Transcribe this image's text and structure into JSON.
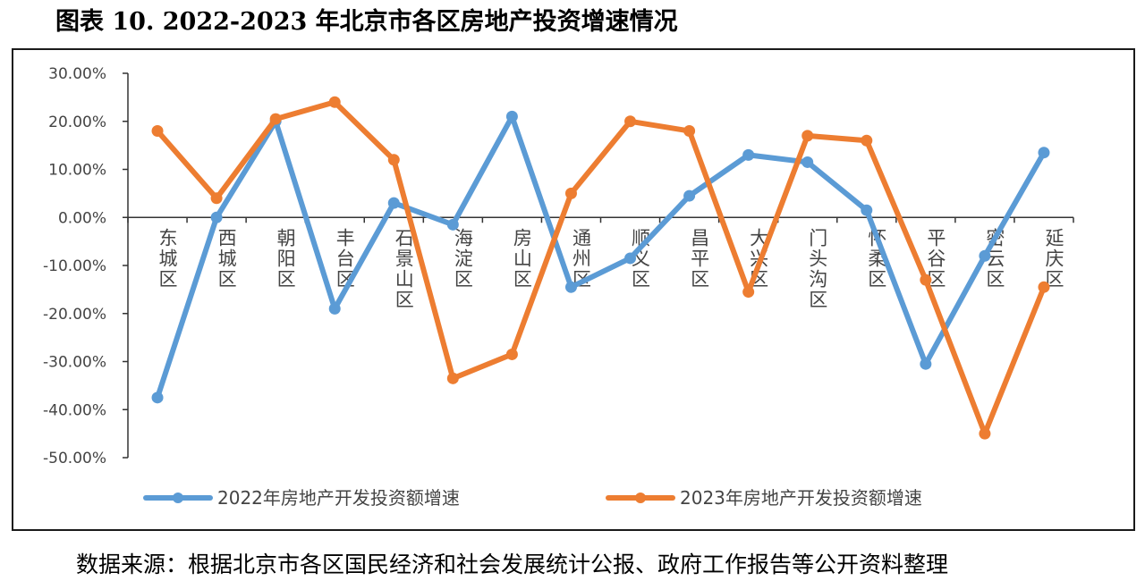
{
  "title": "图表 10. 2022-2023 年北京市各区房地产投资增速情况",
  "source": "数据来源：根据北京市各区国民经济和社会发展统计公报、政府工作报告等公开资料整理",
  "chart_data": {
    "type": "line",
    "categories": [
      "东城区",
      "西城区",
      "朝阳区",
      "丰台区",
      "石景山区",
      "海淀区",
      "房山区",
      "通州区",
      "顺义区",
      "昌平区",
      "大兴区",
      "门头沟区",
      "怀柔区",
      "平谷区",
      "密云区",
      "延庆区"
    ],
    "yticks": [
      "30.00%",
      "20.00%",
      "10.00%",
      "0.00%",
      "-10.00%",
      "-20.00%",
      "-30.00%",
      "-40.00%",
      "-50.00%"
    ],
    "ylim": [
      -50,
      30
    ],
    "grid": false,
    "legend_position": "bottom",
    "series": [
      {
        "name": "2022年房地产开发投资额增速",
        "color": "#5b9bd5",
        "values": [
          -37.5,
          0.0,
          20.0,
          -19.0,
          3.0,
          -1.5,
          21.0,
          -14.5,
          -8.5,
          4.5,
          13.0,
          11.5,
          1.5,
          -30.5,
          -8.0,
          13.5
        ]
      },
      {
        "name": "2023年房地产开发投资额增速",
        "color": "#ed7d31",
        "values": [
          18.0,
          4.0,
          20.5,
          24.0,
          12.0,
          -33.5,
          -28.5,
          5.0,
          20.0,
          18.0,
          -15.5,
          17.0,
          16.0,
          -13.0,
          -45.0,
          -14.5
        ]
      }
    ]
  }
}
